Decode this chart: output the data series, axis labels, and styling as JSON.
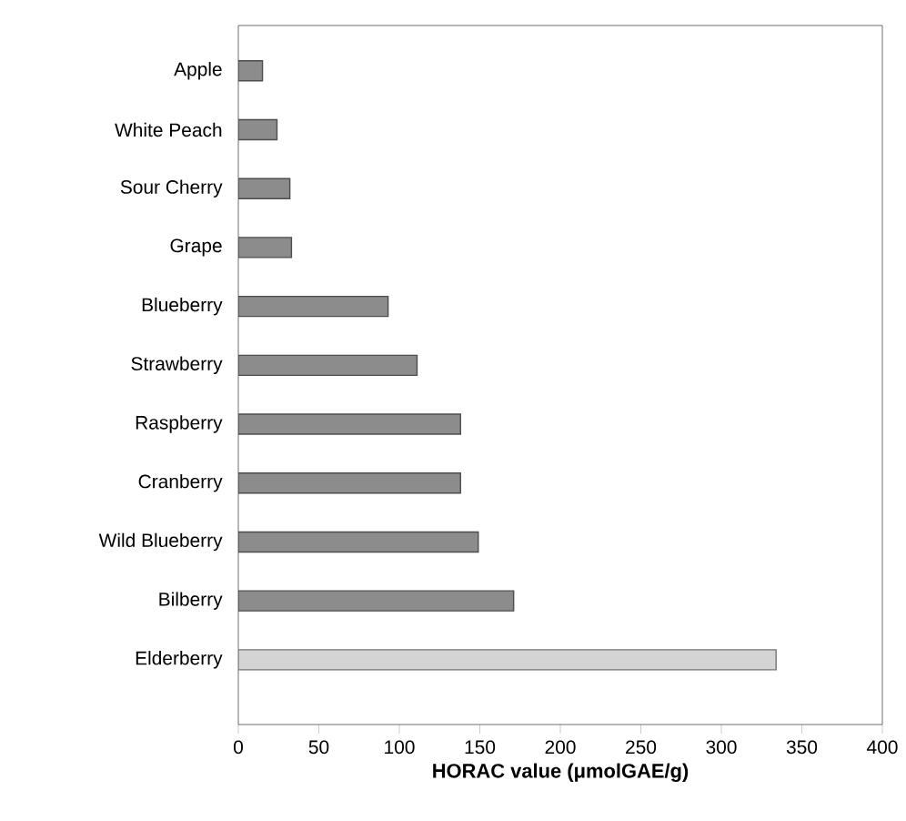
{
  "chart_data": {
    "type": "bar",
    "orientation": "horizontal",
    "xlabel": "HORAC value (μmolGAE/g)",
    "categories": [
      "Apple",
      "White Peach",
      "Sour Cherry",
      "Grape",
      "Blueberry",
      "Strawberry",
      "Raspberry",
      "Cranberry",
      "Wild Blueberry",
      "Bilberry",
      "Elderberry"
    ],
    "values": [
      15,
      24,
      32,
      33,
      93,
      111,
      138,
      138,
      149,
      171,
      334
    ],
    "colors": [
      "#8c8c8c",
      "#8c8c8c",
      "#8c8c8c",
      "#8c8c8c",
      "#8c8c8c",
      "#8c8c8c",
      "#8c8c8c",
      "#8c8c8c",
      "#8c8c8c",
      "#8c8c8c",
      "#d4d4d4"
    ],
    "xlim": [
      0,
      400
    ],
    "xticks": [
      0,
      50,
      100,
      150,
      200,
      250,
      300,
      350,
      400
    ]
  }
}
